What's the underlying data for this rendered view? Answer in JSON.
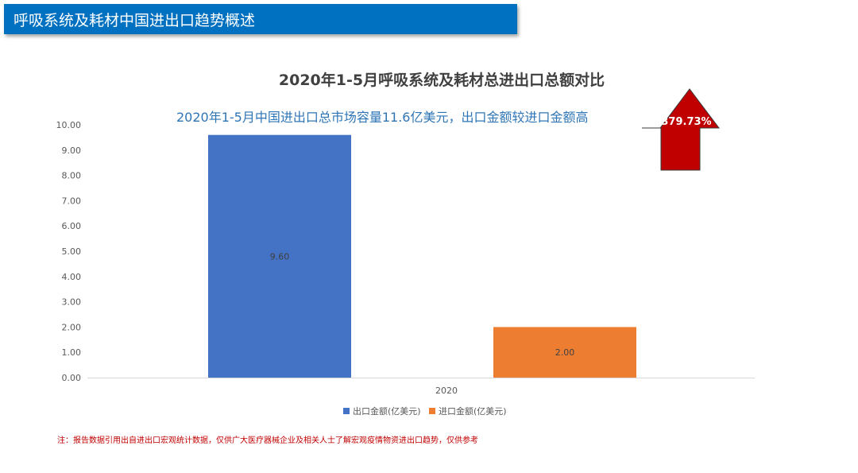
{
  "header": {
    "title": "呼吸系统及耗材中国进出口趋势概述"
  },
  "chart_data": {
    "type": "bar",
    "title": "2020年1-5月呼吸系统及耗材总进出口总额对比",
    "subtitle": "2020年1-5月中国进出口总市场容量11.6亿美元，出口金额较进口金额高",
    "categories": [
      "2020"
    ],
    "series": [
      {
        "name": "出口金额(亿美元)",
        "values": [
          9.6
        ],
        "color": "#4472c4",
        "data_labels": [
          "9.60"
        ]
      },
      {
        "name": "进口金额(亿美元)",
        "values": [
          2.0
        ],
        "color": "#ed7d31",
        "data_labels": [
          "2.00"
        ]
      }
    ],
    "ylim": [
      0,
      10
    ],
    "yticks": [
      "0.00",
      "1.00",
      "2.00",
      "3.00",
      "4.00",
      "5.00",
      "6.00",
      "7.00",
      "8.00",
      "9.00",
      "10.00"
    ],
    "grid": false,
    "legend": "bottom",
    "annotation": {
      "text": "379.73%",
      "shape": "up-arrow",
      "color": "#c00000"
    }
  },
  "footnote": "注：报告数据引用出自进出口宏观统计数据，仅供广大医疗器械企业及相关人士了解宏观疫情物资进出口趋势，仅供参考"
}
